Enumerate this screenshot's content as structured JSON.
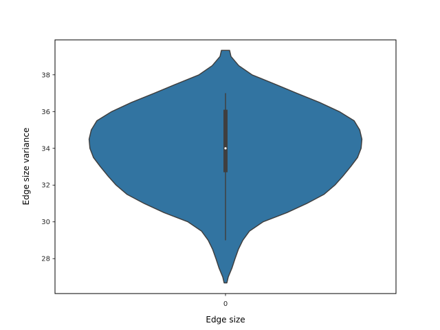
{
  "chart_data": {
    "type": "violin",
    "categories": [
      "0"
    ],
    "xlabel": "Edge size",
    "ylabel": "Edge size variance",
    "ylim": [
      26.1,
      39.9
    ],
    "yticks": [
      28,
      30,
      32,
      34,
      36,
      38
    ],
    "colors": {
      "violin": "#3274a1",
      "outline": "#3f3f3f",
      "box": "#3f3f3f",
      "median": "#ffffff"
    },
    "violins": [
      {
        "category": "0",
        "density_half_width": [
          [
            26.68,
            0.01
          ],
          [
            27.0,
            0.02
          ],
          [
            27.5,
            0.048
          ],
          [
            28.0,
            0.07
          ],
          [
            28.5,
            0.094
          ],
          [
            29.0,
            0.127
          ],
          [
            29.5,
            0.176
          ],
          [
            30.0,
            0.275
          ],
          [
            30.5,
            0.45
          ],
          [
            31.0,
            0.596
          ],
          [
            31.5,
            0.723
          ],
          [
            32.0,
            0.802
          ],
          [
            32.5,
            0.862
          ],
          [
            33.0,
            0.917
          ],
          [
            33.5,
            0.968
          ],
          [
            34.0,
            0.994
          ],
          [
            34.5,
            1.0
          ],
          [
            35.0,
            0.984
          ],
          [
            35.5,
            0.943
          ],
          [
            36.0,
            0.834
          ],
          [
            36.5,
            0.689
          ],
          [
            37.0,
            0.522
          ],
          [
            37.5,
            0.36
          ],
          [
            38.0,
            0.194
          ],
          [
            38.5,
            0.097
          ],
          [
            39.0,
            0.04
          ],
          [
            39.33,
            0.03
          ]
        ],
        "box": {
          "whisker_low": 29.0,
          "q1": 32.7,
          "median": 34.0,
          "q3": 36.1,
          "whisker_high": 37.0
        }
      }
    ]
  }
}
